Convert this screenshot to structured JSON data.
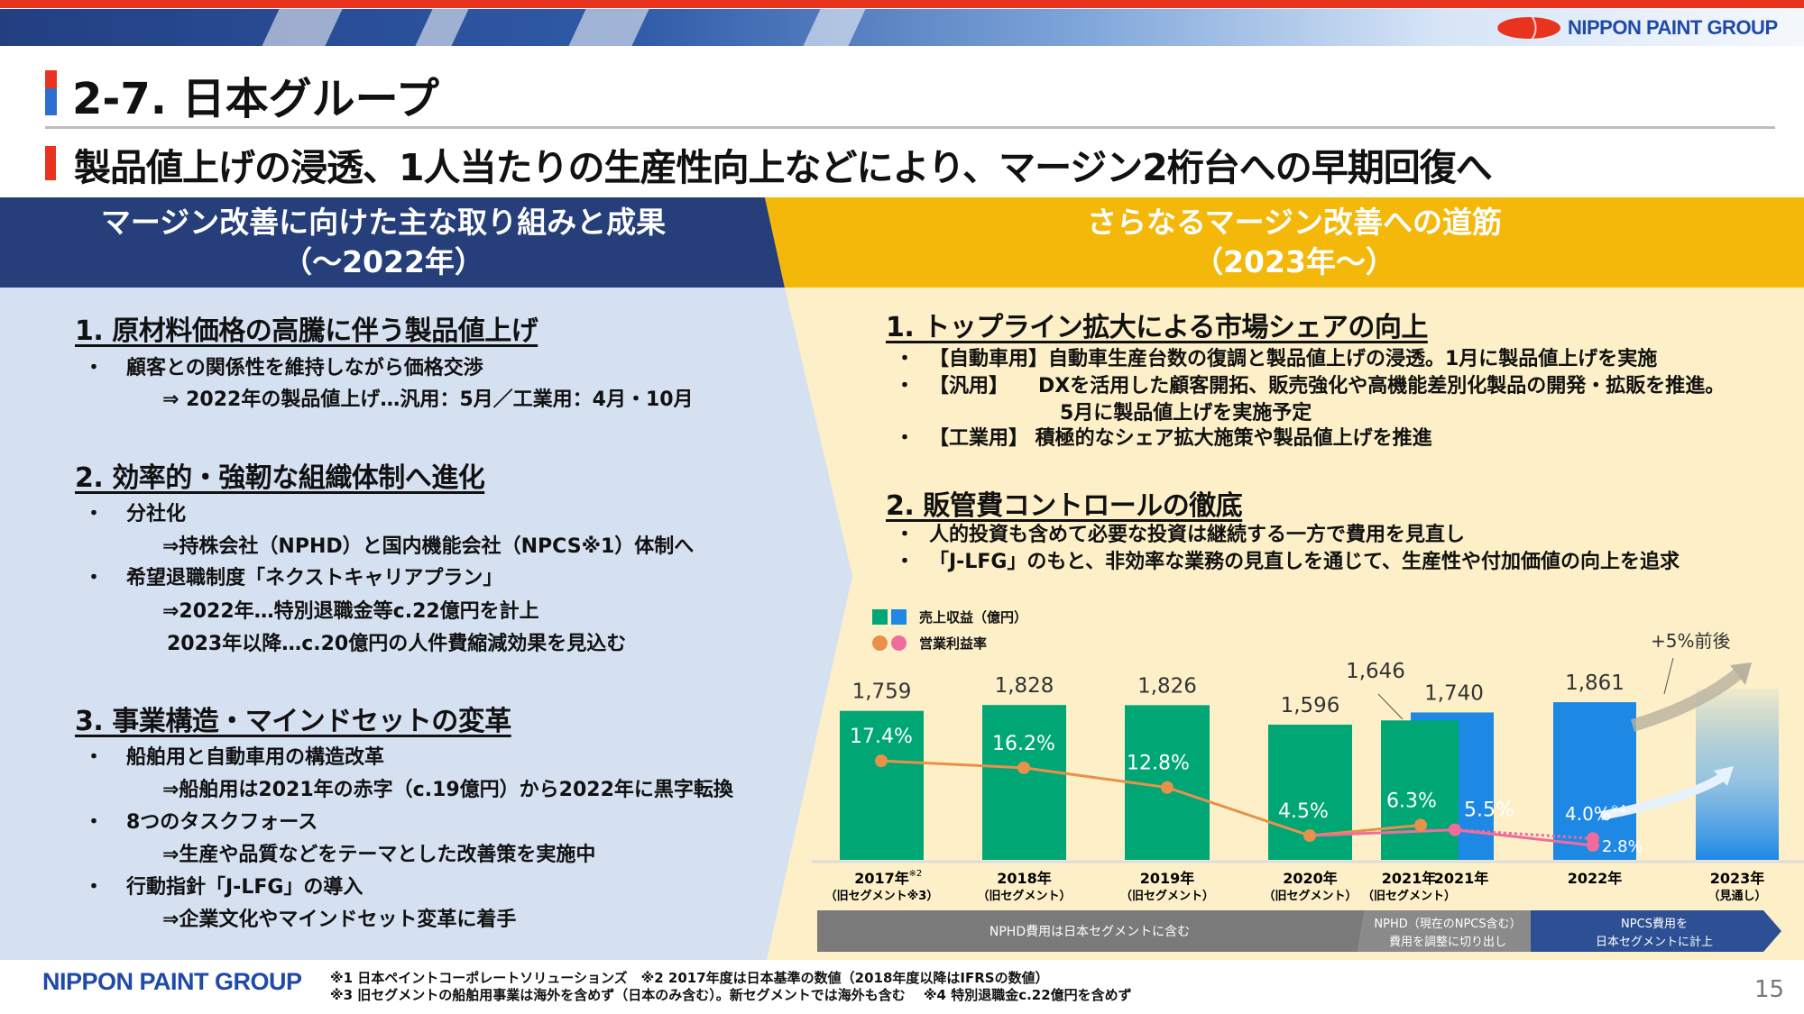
{
  "header": {
    "logo": "NIPPON PAINT GROUP",
    "title": "2-7. 日本グループ",
    "subtitle": "製品値上げの浸透、1人当たりの生産性向上などにより、マージン2桁台への早期回復へ"
  },
  "left": {
    "heading_line1": "マージン改善に向けた主な取り組みと成果",
    "heading_line2": "（～2022年）",
    "sections": [
      {
        "title": "1. 原材料価格の高騰に伴う製品値上げ",
        "items": [
          {
            "bullet": "・",
            "text": "顧客との関係性を維持しながら価格交渉"
          },
          {
            "text": "⇒ 2022年の製品値上げ…汎用：5月／工業用：4月・10月"
          }
        ]
      },
      {
        "title": "2. 効率的・強靭な組織体制へ進化",
        "items": [
          {
            "bullet": "・",
            "text": "分社化"
          },
          {
            "text": "⇒持株会社（NPHD）と国内機能会社（NPCS※1）体制へ"
          },
          {
            "bullet": "・",
            "text": "希望退職制度「ネクストキャリアプラン」"
          },
          {
            "text": "⇒2022年…特別退職金等c.22億円を計上"
          },
          {
            "text": "2023年以降…c.20億円の人件費縮減効果を見込む"
          }
        ]
      },
      {
        "title": "3. 事業構造・マインドセットの変革",
        "items": [
          {
            "bullet": "・",
            "text": "船舶用と自動車用の構造改革"
          },
          {
            "text": "⇒船舶用は2021年の赤字（c.19億円）から2022年に黒字転換"
          },
          {
            "bullet": "・",
            "text": "8つのタスクフォース"
          },
          {
            "text": "⇒生産や品質などをテーマとした改善策を実施中"
          },
          {
            "bullet": "・",
            "text": "行動指針「J-LFG」の導入"
          },
          {
            "text": "⇒企業文化やマインドセット変革に着手"
          }
        ]
      }
    ]
  },
  "right": {
    "heading_line1": "さらなるマージン改善への道筋",
    "heading_line2": "（2023年～）",
    "sections": [
      {
        "title": "1. トップライン拡大による市場シェアの向上",
        "items": [
          {
            "bullet": "・",
            "text": "【自動車用】自動車生産台数の復調と製品値上げの浸透。1月に製品値上げを実施"
          },
          {
            "bullet": "・",
            "text": "【汎用】　　DXを活用した顧客開拓、販売強化や高機能差別化製品の開発・拡販を推進。"
          },
          {
            "text": "5月に製品値上げを実施予定"
          },
          {
            "bullet": "・",
            "text": "【工業用】 積極的なシェア拡大施策や製品値上げを推進"
          }
        ]
      },
      {
        "title": "2. 販管費コントロールの徹底",
        "items": [
          {
            "bullet": "・",
            "text": "人的投資も含めて必要な投資は継続する一方で費用を見直し"
          },
          {
            "bullet": "・",
            "text": "「J-LFG」のもと、非効率な業務の見直しを通じて、生産性や付加価値の向上を追求"
          }
        ]
      }
    ]
  },
  "chart_data": {
    "type": "bar",
    "legend": [
      "売上収益（億円）",
      "営業利益率"
    ],
    "categories": [
      {
        "year": "2017年",
        "sup": "※2",
        "note": "（旧セグメント※3）"
      },
      {
        "year": "2018年",
        "note": "（旧セグメント）"
      },
      {
        "year": "2019年",
        "note": "（旧セグメント）"
      },
      {
        "year": "2020年",
        "note": "（旧セグメント）"
      },
      {
        "year": "2021年",
        "note": "（旧セグメント）"
      },
      {
        "year": "2021年",
        "note": ""
      },
      {
        "year": "2022年",
        "note": ""
      },
      {
        "year": "2023年",
        "note": "（見通し）"
      }
    ],
    "revenue": [
      {
        "value": 1759,
        "label": "1,759",
        "series": "old"
      },
      {
        "value": 1828,
        "label": "1,828",
        "series": "old"
      },
      {
        "value": 1826,
        "label": "1,826",
        "series": "old"
      },
      {
        "value": 1596,
        "label": "1,596",
        "series": "old"
      },
      {
        "value": 1646,
        "label": "1,646",
        "series": "old"
      },
      {
        "value": 1740,
        "label": "1,740",
        "series": "new"
      },
      {
        "value": 1861,
        "label": "1,861",
        "series": "new"
      },
      {
        "value": null,
        "label": "",
        "series": "forecast"
      }
    ],
    "margin_old": [
      17.4,
      16.2,
      12.8,
      4.5,
      6.3
    ],
    "margin_old_labels": [
      "17.4%",
      "16.2%",
      "12.8%",
      "4.5%",
      "6.3%"
    ],
    "margin_new": [
      {
        "x": 3,
        "value": 4.5
      },
      {
        "x": 5,
        "value": 5.5,
        "label": "5.5%"
      },
      {
        "x": 6,
        "value": 2.8,
        "label": "2.8%"
      }
    ],
    "margin_2022_excl": {
      "value": 4.0,
      "label": "4.0%",
      "sup": "※4"
    },
    "forecast_label": "+5%前後",
    "colors": {
      "old_bar": "#00a775",
      "new_bar": "#1e88e5",
      "old_line": "#e8914a",
      "new_line": "#ef6d9d"
    },
    "bands": [
      "NPHD費用は日本セグメントに含む",
      "NPHD（現在のNPCS含む）",
      "費用を調整に切り出し",
      "NPCS費用を",
      "日本セグメントに計上"
    ]
  },
  "footer": {
    "logo": "NIPPON PAINT GROUP",
    "note1": "※1 日本ペイントコーポレートソリューションズ　※2 2017年度は日本基準の数値（2018年度以降はIFRSの数値）",
    "note2": "※3 旧セグメントの船舶用事業は海外を含めず（日本のみ含む）。新セグメントでは海外も含む　 ※4 特別退職金c.22億円を含めず",
    "page": "15"
  }
}
